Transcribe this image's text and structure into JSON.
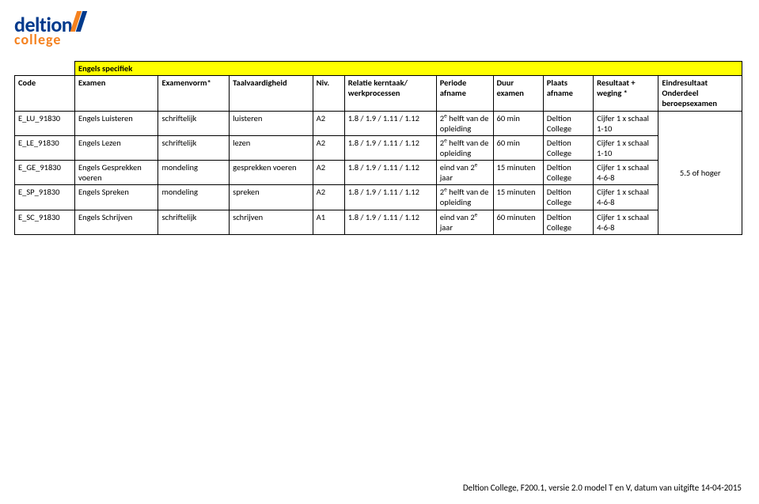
{
  "logo": {
    "line1": "deltion",
    "line2": "college"
  },
  "section_label": "Engels specifiek",
  "headers": {
    "code": "Code",
    "examen": "Examen",
    "vorm": "Examenvorm*",
    "taal": "Taalvaardigheid",
    "niv": "Niv.",
    "relatie": "Relatie kerntaak/ werkprocessen",
    "periode": "Periode afname",
    "duur": "Duur examen",
    "plaats": "Plaats afname",
    "resultaat": "Resultaat + weging *",
    "eind": "Eindresultaat Onderdeel beroepsexamen"
  },
  "rows": [
    {
      "code": "E_LU_91830",
      "examen": "Engels Luisteren",
      "vorm": "schriftelijk",
      "taal": "luisteren",
      "niv": "A2",
      "relatie": "1.8 / 1.9 / 1.11 / 1.12",
      "periode_html": "2<sup>e</sup> helft van de opleiding",
      "duur": "60 min",
      "plaats": "Deltion College",
      "resultaat": "Cijfer 1 x schaal 1-10"
    },
    {
      "code": "E_LE_91830",
      "examen": "Engels Lezen",
      "vorm": "schriftelijk",
      "taal": "lezen",
      "niv": "A2",
      "relatie": "1.8 / 1.9 / 1.11 / 1.12",
      "periode_html": "2<sup>e</sup> helft van de opleiding",
      "duur": "60 min",
      "plaats": "Deltion College",
      "resultaat": "Cijfer 1 x schaal 1-10"
    },
    {
      "code": "E_GE_91830",
      "examen": "Engels Gesprekken voeren",
      "vorm": "mondeling",
      "taal": "gesprekken voeren",
      "niv": "A2",
      "relatie": "1.8 / 1.9 / 1.11 / 1.12",
      "periode_html": "eind van 2<sup>e</sup> jaar",
      "duur": "15 minuten",
      "plaats": "Deltion College",
      "resultaat": "Cijfer 1 x schaal 4-6-8"
    },
    {
      "code": "E_SP_91830",
      "examen": "Engels Spreken",
      "vorm": "mondeling",
      "taal": "spreken",
      "niv": "A2",
      "relatie": "1.8 / 1.9 / 1.11 / 1.12",
      "periode_html": "2<sup>e</sup> helft van de opleiding",
      "duur": "15 minuten",
      "plaats": "Deltion College",
      "resultaat": "Cijfer 1 x schaal 4-6-8"
    },
    {
      "code": "E_SC_91830",
      "examen": "Engels Schrijven",
      "vorm": "schriftelijk",
      "taal": "schrijven",
      "niv": "A1",
      "relatie": "1.8 / 1.9 / 1.11 / 1.12",
      "periode_html": "eind van 2<sup>e</sup> jaar",
      "duur": "60 minuten",
      "plaats": "Deltion College",
      "resultaat": "Cijfer 1 x schaal 4-6-8"
    }
  ],
  "eindresultaat_value": "5.5 of hoger",
  "footer": "Deltion College, F200.1, versie 2.0 model T en V, datum van uitgifte 14-04-2015"
}
